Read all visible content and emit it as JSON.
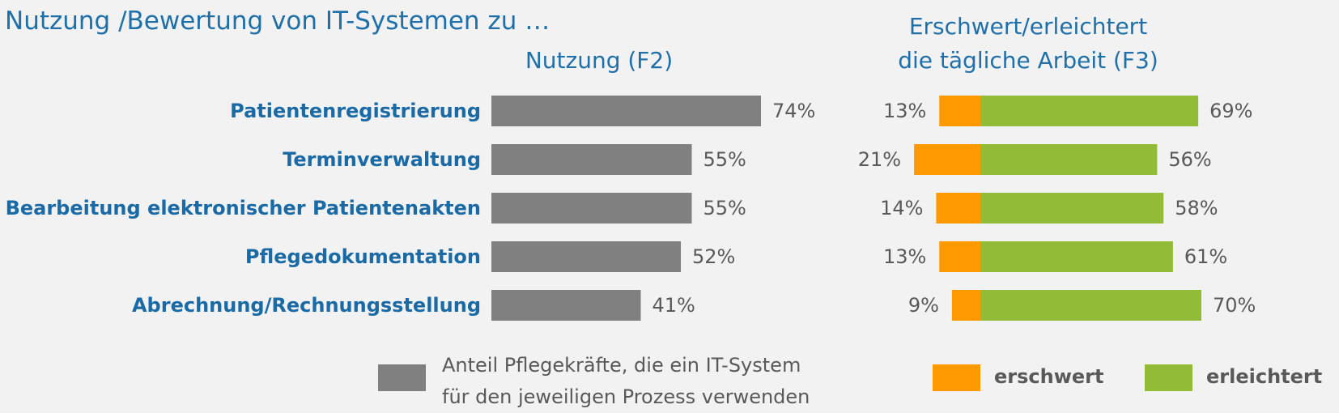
{
  "title": "Nutzung /Bewertung von IT-Systemen zu …",
  "left_header": "Nutzung (F2)",
  "right_header": {
    "line1": "Erschwert/erleichtert",
    "line2": "die tägliche Arbeit (F3)"
  },
  "legend": {
    "usage_line1": "Anteil Pflegekräfte, die ein IT-System",
    "usage_line2": "für den jeweiligen Prozess verwenden",
    "harder": "erschwert",
    "easier": "erleichtert"
  },
  "colors": {
    "usage": "#808080",
    "harder": "#ff9900",
    "easier": "#92bc37",
    "category_text": "#1a6aa6",
    "value_text": "#595959"
  },
  "chart_data": [
    {
      "type": "bar",
      "orientation": "horizontal",
      "title": "Nutzung (F2)",
      "categories": [
        "Patientenregistrierung",
        "Terminverwaltung",
        "Bearbeitung elektronischer Patientenakten",
        "Pflegedokumentation",
        "Abrechnung/Rechnungsstellung"
      ],
      "series": [
        {
          "name": "Anteil Pflegekräfte, die ein IT-System für den jeweiligen Prozess verwenden",
          "values": [
            74,
            55,
            55,
            52,
            41
          ]
        }
      ],
      "unit": "%",
      "data_labels": [
        "74%",
        "55%",
        "55%",
        "52%",
        "41%"
      ],
      "grid": false
    },
    {
      "type": "bar",
      "orientation": "horizontal",
      "stacked": "diverging",
      "title": "Erschwert/erleichtert die tägliche Arbeit (F3)",
      "categories": [
        "Patientenregistrierung",
        "Terminverwaltung",
        "Bearbeitung elektronischer Patientenakten",
        "Pflegedokumentation",
        "Abrechnung/Rechnungsstellung"
      ],
      "series": [
        {
          "name": "erschwert",
          "values": [
            13,
            21,
            14,
            13,
            9
          ],
          "labels": [
            "13%",
            "21%",
            "14%",
            "13%",
            "9%"
          ]
        },
        {
          "name": "erleichtert",
          "values": [
            69,
            56,
            58,
            61,
            70
          ],
          "labels": [
            "69%",
            "56%",
            "58%",
            "61%",
            "70%"
          ]
        }
      ],
      "unit": "%",
      "grid": false,
      "legend_position": "bottom"
    }
  ]
}
